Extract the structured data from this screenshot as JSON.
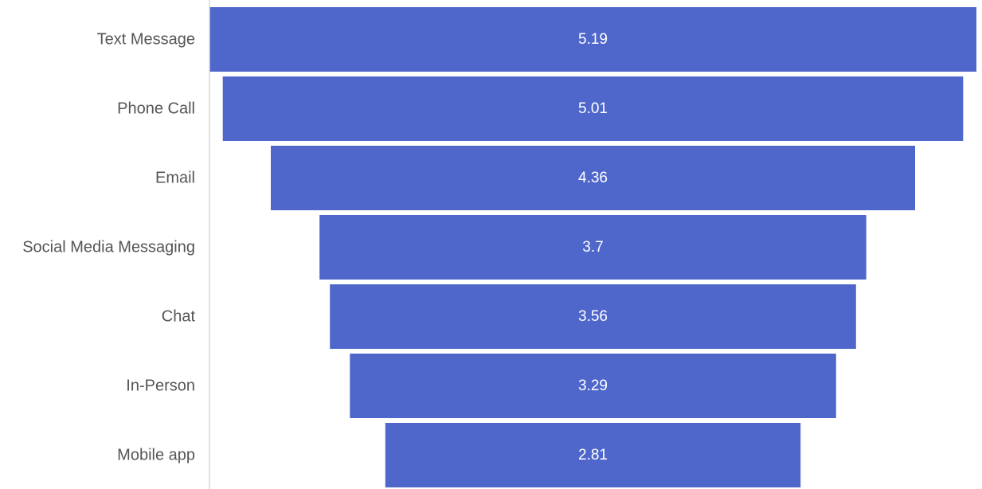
{
  "chart_data": {
    "type": "bar",
    "subtype": "funnel",
    "title": "",
    "xlabel": "",
    "ylabel": "",
    "categories": [
      "Text Message",
      "Phone Call",
      "Email",
      "Social Media Messaging",
      "Chat",
      "In-Person",
      "Mobile app"
    ],
    "values": [
      5.19,
      5.01,
      4.36,
      3.7,
      3.56,
      3.29,
      2.81
    ],
    "value_labels": [
      "5.19",
      "5.01",
      "4.36",
      "3.7",
      "3.56",
      "3.29",
      "2.81"
    ],
    "xlim": [
      0,
      5.19
    ],
    "grid": false,
    "legend": "none",
    "bar_color": "#4f67cb",
    "axis_color": "#d9d9d9",
    "label_color": "#555555",
    "value_label_color": "#ffffff"
  }
}
